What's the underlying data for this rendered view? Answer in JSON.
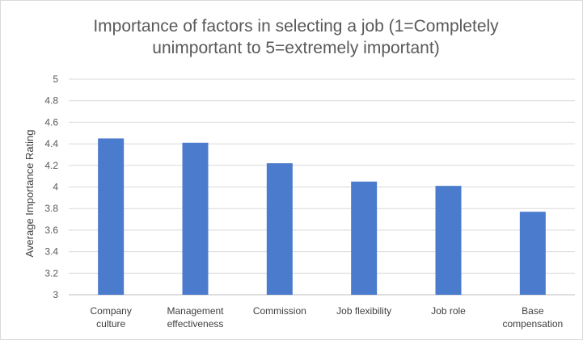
{
  "chart_data": {
    "type": "bar",
    "title": "Importance of factors in selecting a job (1=Completely\nunimportant to 5=extremely important)",
    "xlabel": "",
    "ylabel": "Average Importance Rating",
    "categories": [
      [
        "Company",
        "culture"
      ],
      [
        "Management",
        "effectiveness"
      ],
      [
        "Commission"
      ],
      [
        "Job flexibility"
      ],
      [
        "Job role"
      ],
      [
        "Base",
        "compensation"
      ]
    ],
    "values": [
      4.45,
      4.41,
      4.22,
      4.05,
      4.01,
      3.77
    ],
    "ylim": [
      3,
      5
    ],
    "yticks": [
      "3",
      "3.2",
      "3.4",
      "3.6",
      "3.8",
      "4",
      "4.2",
      "4.4",
      "4.6",
      "4.8",
      "5"
    ],
    "grid": true,
    "legend": "none",
    "colors": {
      "bar": "#4a7bcc",
      "grid": "#d9d9d9",
      "axis": "#bfbfbf"
    }
  }
}
